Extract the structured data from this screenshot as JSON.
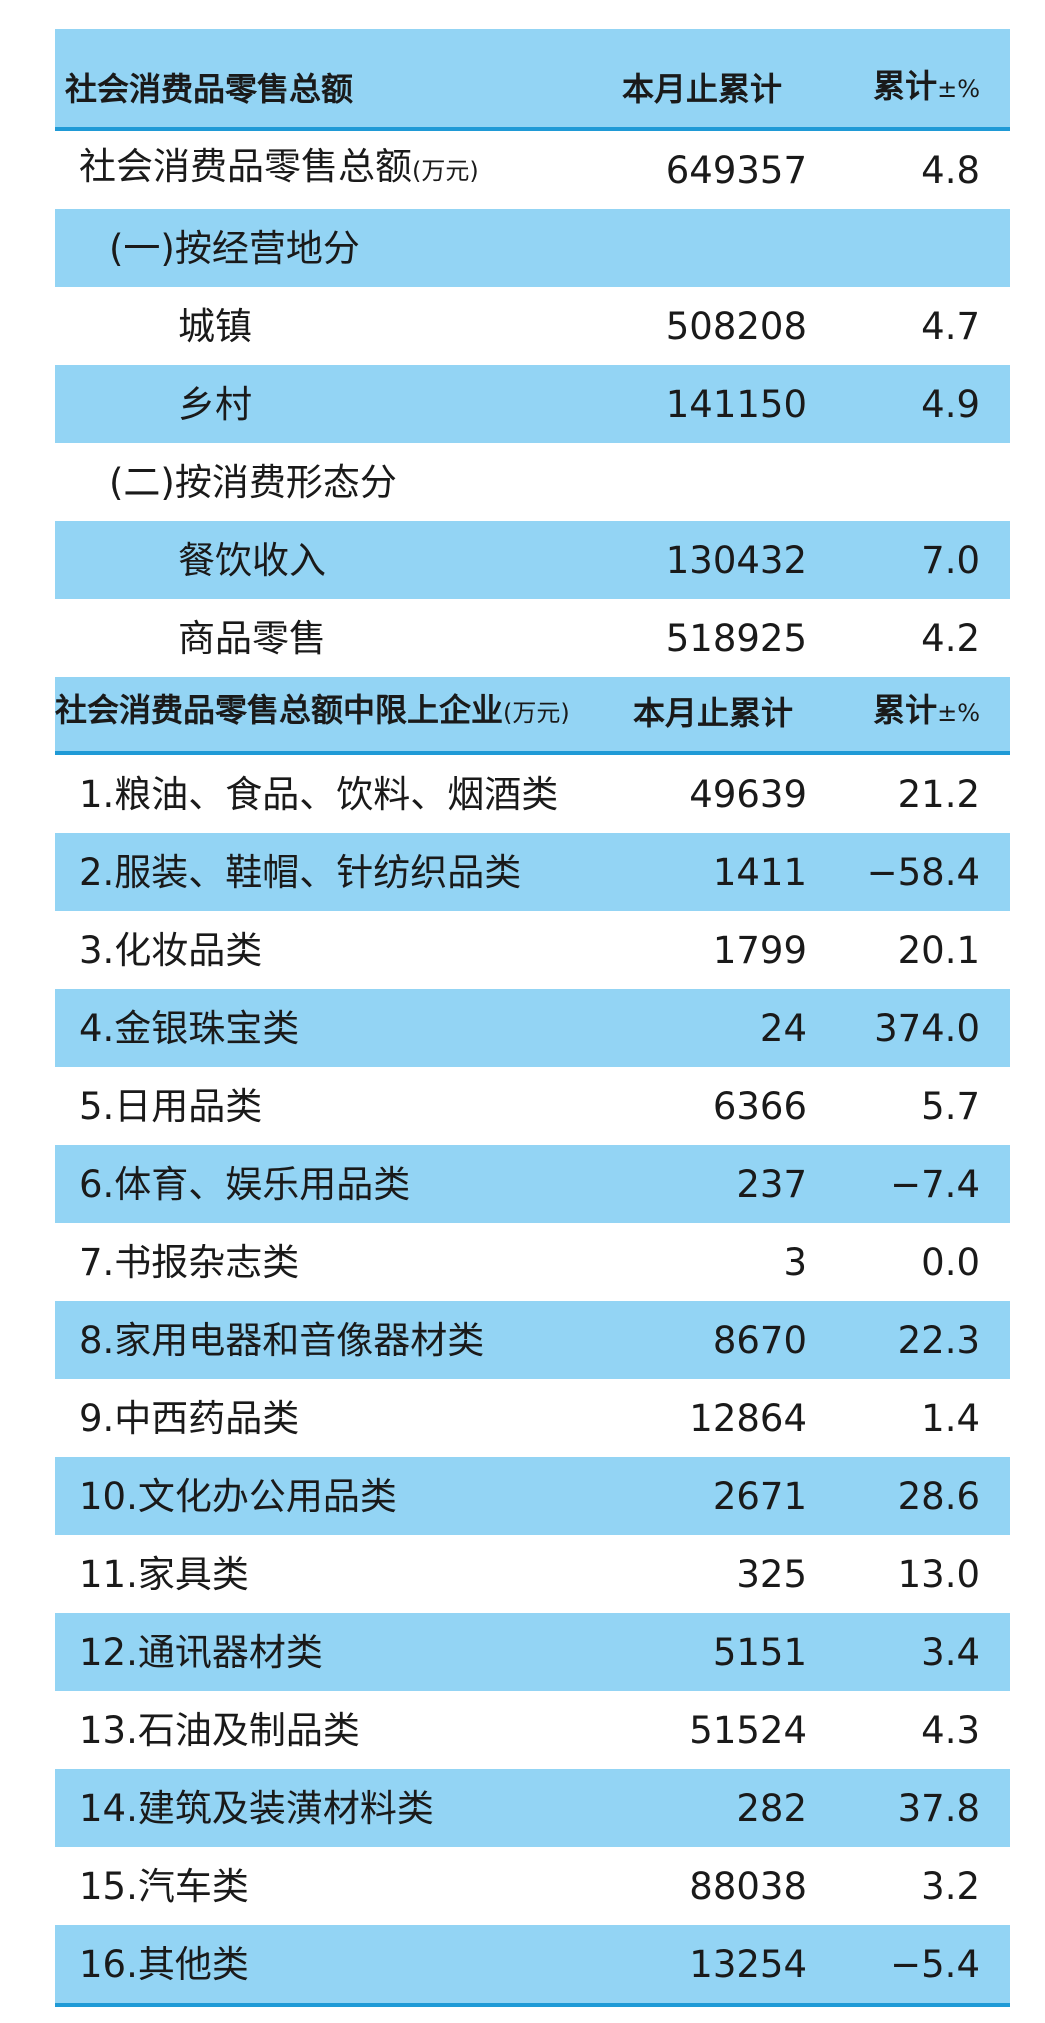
{
  "sections": [
    {
      "header": {
        "title": "社会消费品零售总额",
        "unit": "",
        "col1": "本月止累计",
        "col2": "累计",
        "col2_unit": "±%"
      },
      "rows": [
        {
          "label": "社会消费品零售总额",
          "unit": "(万元)",
          "value": "649357",
          "pct": "4.8",
          "level": 1
        },
        {
          "label": "(一)按经营地分",
          "level": 2
        },
        {
          "label": "城镇",
          "value": "508208",
          "pct": "4.7",
          "level": 3
        },
        {
          "label": "乡村",
          "value": "141150",
          "pct": "4.9",
          "level": 3
        },
        {
          "label": "(二)按消费形态分",
          "level": 2
        },
        {
          "label": "餐饮收入",
          "value": "130432",
          "pct": "7.0",
          "level": 3
        },
        {
          "label": "商品零售",
          "value": "518925",
          "pct": "4.2",
          "level": 3
        }
      ]
    },
    {
      "header": {
        "title": "社会消费品零售总额中限上企业",
        "unit": "(万元)",
        "col1": "本月止累计",
        "col2": "累计",
        "col2_unit": "±%"
      },
      "rows": [
        {
          "label": "1.粮油、食品、饮料、烟酒类",
          "value": "49639",
          "pct": "21.2",
          "level": 1
        },
        {
          "label": "2.服装、鞋帽、针纺织品类",
          "value": "1411",
          "pct": "−58.4",
          "level": 1
        },
        {
          "label": "3.化妆品类",
          "value": "1799",
          "pct": "20.1",
          "level": 1
        },
        {
          "label": "4.金银珠宝类",
          "value": "24",
          "pct": "374.0",
          "level": 1
        },
        {
          "label": "5.日用品类",
          "value": "6366",
          "pct": "5.7",
          "level": 1
        },
        {
          "label": "6.体育、娱乐用品类",
          "value": "237",
          "pct": "−7.4",
          "level": 1
        },
        {
          "label": "7.书报杂志类",
          "value": "3",
          "pct": "0.0",
          "level": 1
        },
        {
          "label": "8.家用电器和音像器材类",
          "value": "8670",
          "pct": "22.3",
          "level": 1
        },
        {
          "label": "9.中西药品类",
          "value": "12864",
          "pct": "1.4",
          "level": 1
        },
        {
          "label": "10.文化办公用品类",
          "value": "2671",
          "pct": "28.6",
          "level": 1
        },
        {
          "label": "11.家具类",
          "value": "325",
          "pct": "13.0",
          "level": 1
        },
        {
          "label": "12.通讯器材类",
          "value": "5151",
          "pct": "3.4",
          "level": 1
        },
        {
          "label": "13.石油及制品类",
          "value": "51524",
          "pct": "4.3",
          "level": 1
        },
        {
          "label": "14.建筑及装潢材料类",
          "value": "282",
          "pct": "37.8",
          "level": 1
        },
        {
          "label": "15.汽车类",
          "value": "88038",
          "pct": "3.2",
          "level": 1
        },
        {
          "label": "16.其他类",
          "value": "13254",
          "pct": "−5.4",
          "level": 1
        }
      ]
    }
  ]
}
